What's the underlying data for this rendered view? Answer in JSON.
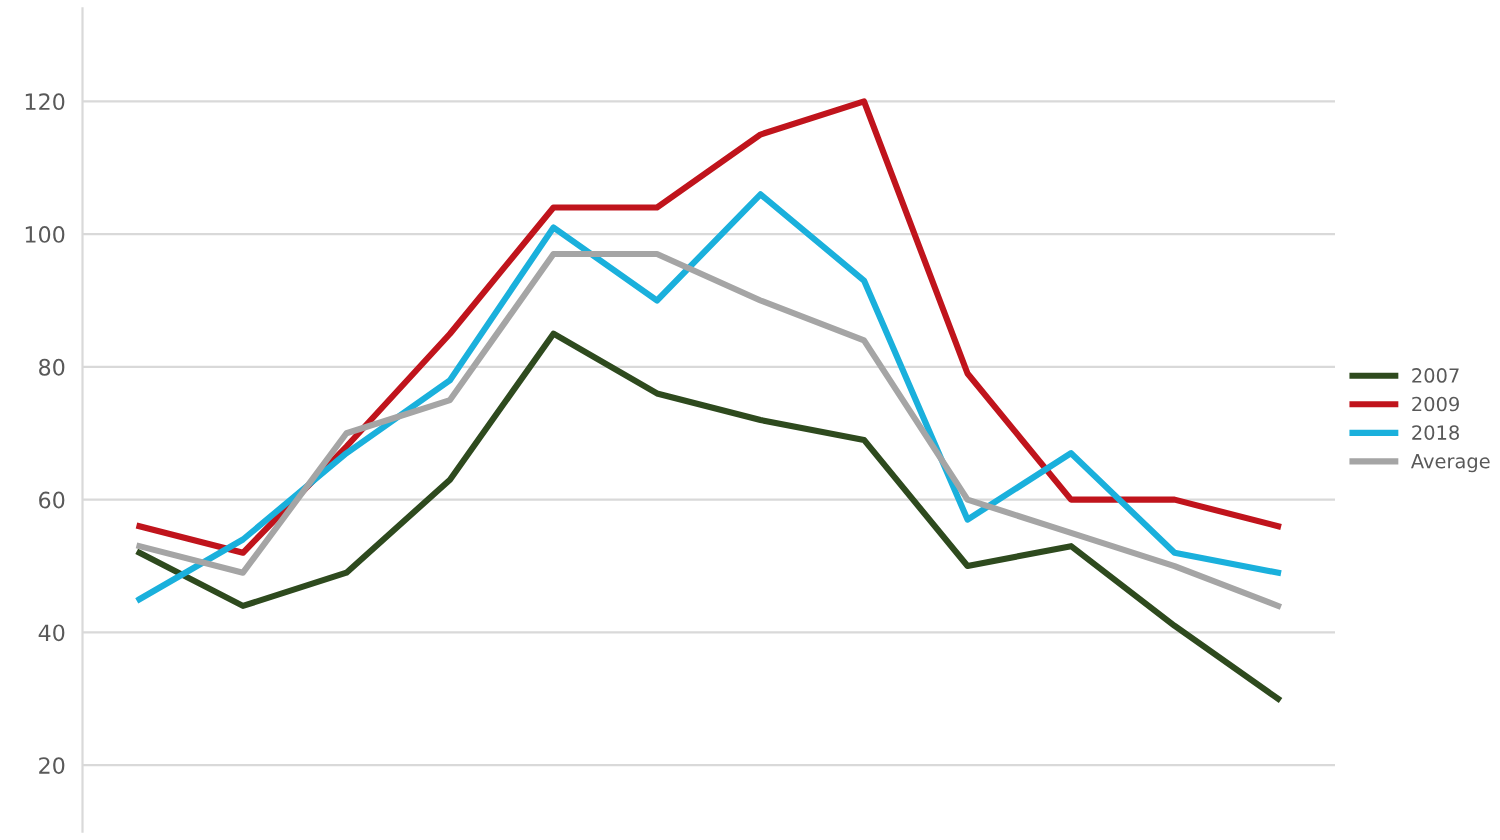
{
  "chart_data": {
    "type": "line",
    "categories": [
      null,
      null,
      null,
      null,
      null,
      null,
      null,
      null,
      null,
      null,
      null,
      null
    ],
    "series": [
      {
        "name": "2007",
        "color": "#2e4a1e",
        "values": [
          52,
          44,
          49,
          63,
          85,
          76,
          72,
          69,
          50,
          53,
          41,
          30
        ]
      },
      {
        "name": "2009",
        "color": "#c0141c",
        "values": [
          56,
          52,
          68,
          85,
          104,
          104,
          115,
          120,
          79,
          60,
          60,
          56
        ]
      },
      {
        "name": "2018",
        "color": "#1ab0dc",
        "values": [
          45,
          54,
          67,
          78,
          101,
          90,
          106,
          93,
          57,
          67,
          52,
          49
        ]
      },
      {
        "name": "Average",
        "color": "#a5a5a5",
        "values": [
          53,
          49,
          70,
          75,
          97,
          97,
          90,
          84,
          60,
          55,
          50,
          44
        ]
      }
    ],
    "ylim": [
      10,
      134
    ],
    "yticks": [
      20,
      40,
      60,
      80,
      100,
      120
    ],
    "grid": "y",
    "legend": "right"
  }
}
